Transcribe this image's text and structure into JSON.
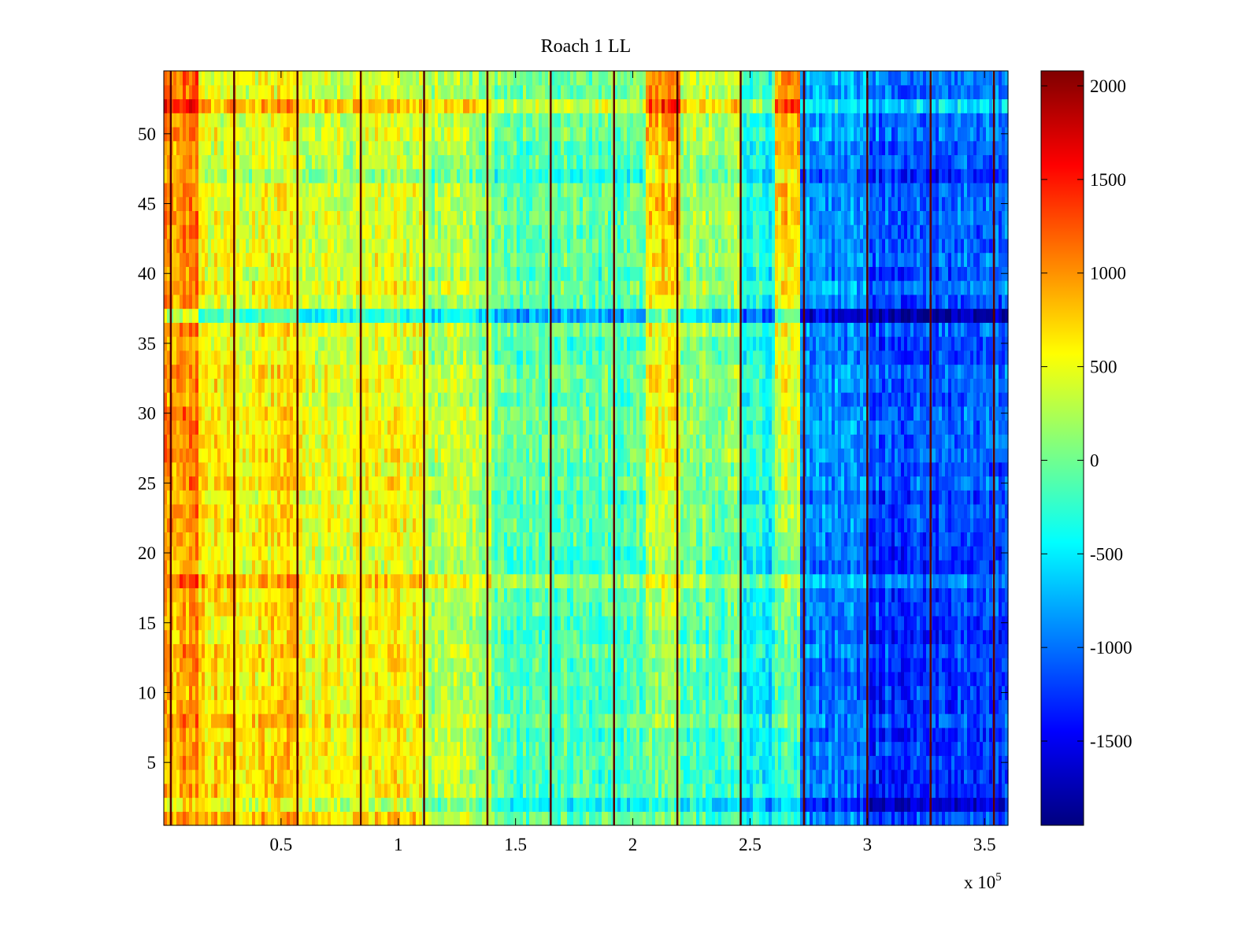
{
  "chart_data": {
    "type": "heatmap",
    "title": "Roach 1 LL",
    "xlabel": "",
    "ylabel": "",
    "x_exponent_base": "x 10",
    "x_exponent_power": "5",
    "xlim": [
      0,
      3.6
    ],
    "ylim": [
      0.5,
      54.5
    ],
    "rows": 54,
    "xticks": [
      0.5,
      1,
      1.5,
      2,
      2.5,
      3,
      3.5
    ],
    "xtick_labels": [
      "0.5",
      "1",
      "1.5",
      "2",
      "2.5",
      "3",
      "3.5"
    ],
    "yticks": [
      5,
      10,
      15,
      20,
      25,
      30,
      35,
      40,
      45,
      50
    ],
    "ytick_labels": [
      "5",
      "10",
      "15",
      "20",
      "25",
      "30",
      "35",
      "40",
      "45",
      "50"
    ],
    "colorbar": {
      "colormap": "jet",
      "clim": [
        -1950,
        2080
      ],
      "ticks": [
        2000,
        1500,
        1000,
        500,
        0,
        -500,
        -1000,
        -1500
      ],
      "tick_labels": [
        "2000",
        "1500",
        "1000",
        "500",
        "0",
        "-500",
        "-1000",
        "-1500"
      ]
    },
    "boundary_lines_x": [
      0.03,
      0.3,
      0.57,
      0.84,
      1.11,
      1.38,
      1.65,
      1.92,
      2.19,
      2.46,
      2.73,
      3.0,
      3.27,
      3.54
    ],
    "column_regions": [
      {
        "x_start": 0.0,
        "x_end": 0.15,
        "base_bottom": 900,
        "base_top": 1100
      },
      {
        "x_start": 0.15,
        "x_end": 0.6,
        "base_bottom": 750,
        "base_top": 450
      },
      {
        "x_start": 0.6,
        "x_end": 1.1,
        "base_bottom": 600,
        "base_top": 350
      },
      {
        "x_start": 1.1,
        "x_end": 1.4,
        "base_bottom": 250,
        "base_top": 200
      },
      {
        "x_start": 1.4,
        "x_end": 2.05,
        "base_bottom": -150,
        "base_top": -50
      },
      {
        "x_start": 2.05,
        "x_end": 2.2,
        "base_bottom": 0,
        "base_top": 1000
      },
      {
        "x_start": 2.2,
        "x_end": 2.46,
        "base_bottom": -200,
        "base_top": 300
      },
      {
        "x_start": 2.46,
        "x_end": 2.6,
        "base_bottom": -500,
        "base_top": -300
      },
      {
        "x_start": 2.6,
        "x_end": 2.72,
        "base_bottom": -300,
        "base_top": 1000
      },
      {
        "x_start": 2.72,
        "x_end": 3.0,
        "base_bottom": -1000,
        "base_top": -800
      },
      {
        "x_start": 3.0,
        "x_end": 3.6,
        "base_bottom": -1300,
        "base_top": -1000
      }
    ],
    "row_offsets": [
      {
        "row": 2,
        "delta": -300
      },
      {
        "row": 18,
        "delta": 350
      },
      {
        "row": 37,
        "delta": -700
      },
      {
        "row": 47,
        "delta": -250
      },
      {
        "row": 52,
        "delta": 350
      }
    ]
  }
}
